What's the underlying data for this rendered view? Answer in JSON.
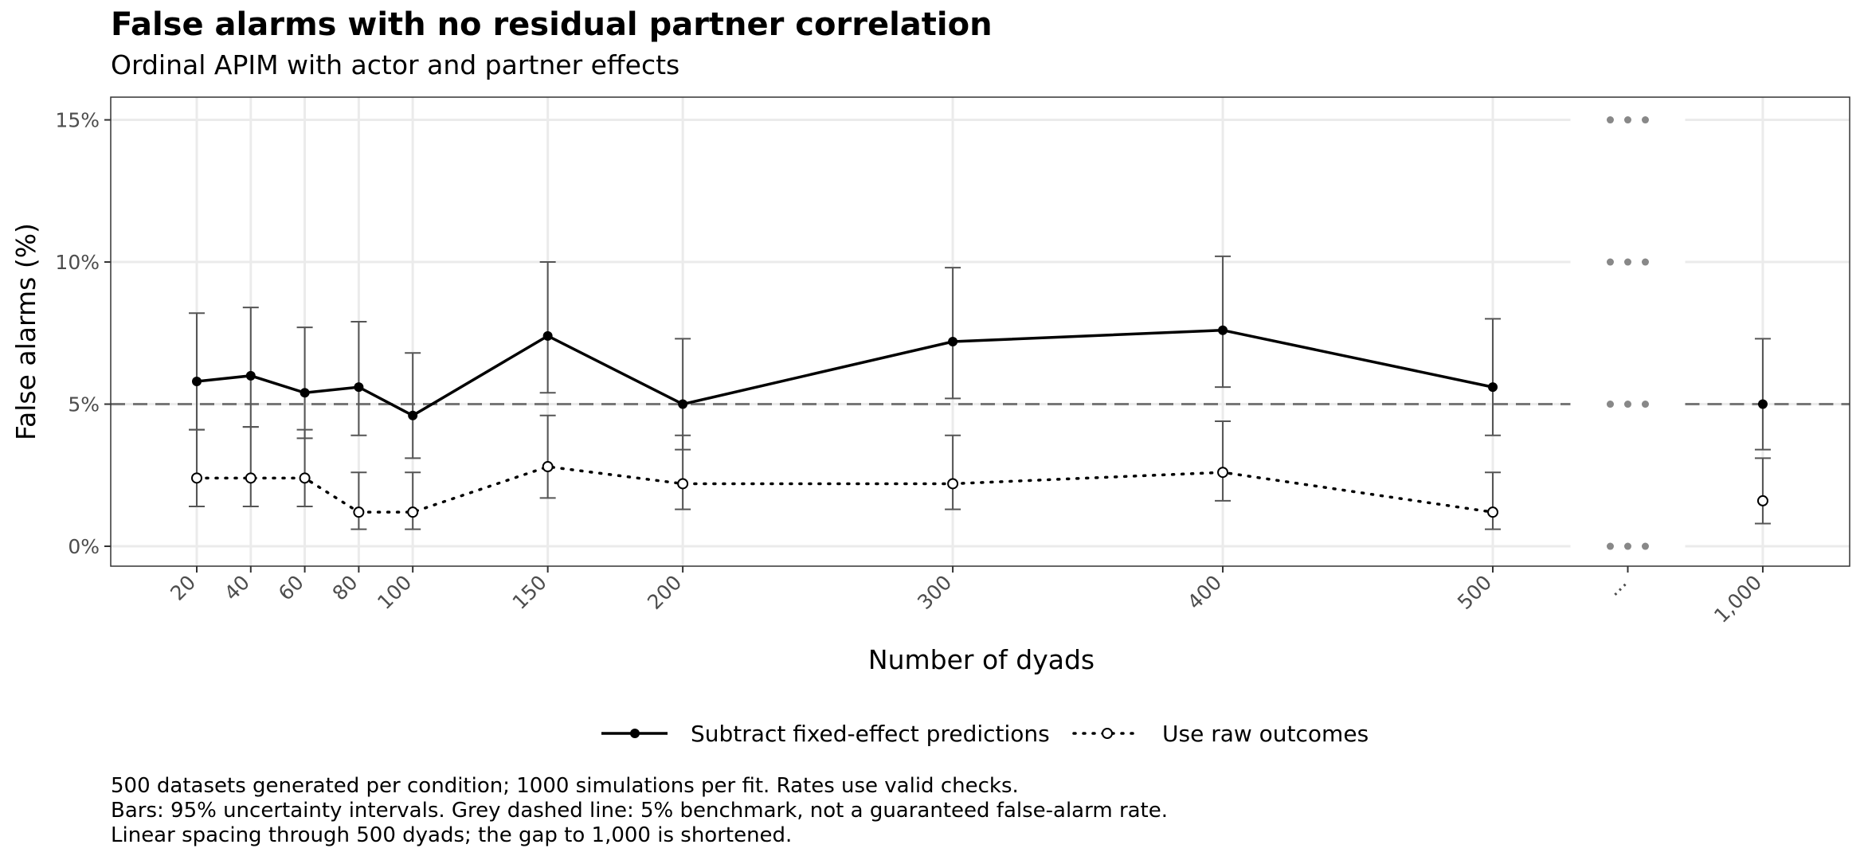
{
  "chart_data": {
    "type": "line",
    "title": "False alarms with no residual partner correlation",
    "subtitle": "Ordinal APIM with actor and partner effects",
    "xlabel": "Number of dyads",
    "ylabel": "False alarms (%)",
    "x_tick_labels": [
      "20",
      "40",
      "60",
      "80",
      "100",
      "150",
      "200",
      "300",
      "400",
      "500",
      "...",
      "1,000"
    ],
    "y_tick_labels": [
      "0%",
      "5%",
      "10%",
      "15%"
    ],
    "y_ticks": [
      0,
      5,
      10,
      15
    ],
    "ylim": [
      -0.7,
      15.8
    ],
    "x_linear_range": [
      20,
      500
    ],
    "x_axis_break_label": "...",
    "benchmark": 5,
    "grid": true,
    "legend_position": "bottom",
    "x": [
      20,
      40,
      60,
      80,
      100,
      150,
      200,
      300,
      400,
      500,
      1000
    ],
    "series": [
      {
        "name": "Subtract fixed-effect predictions",
        "style": "solid",
        "marker": "filled-circle",
        "values": [
          5.8,
          6.0,
          5.4,
          5.6,
          4.6,
          7.4,
          5.0,
          7.2,
          7.6,
          5.6,
          5.0
        ],
        "lower": [
          4.1,
          4.2,
          3.8,
          3.9,
          3.1,
          5.4,
          3.4,
          5.2,
          5.6,
          3.9,
          3.4
        ],
        "upper": [
          8.2,
          8.4,
          7.7,
          7.9,
          6.8,
          10.0,
          7.3,
          9.8,
          10.2,
          8.0,
          7.3
        ]
      },
      {
        "name": "Use raw outcomes",
        "style": "dotted",
        "marker": "open-circle",
        "values": [
          2.4,
          2.4,
          2.4,
          1.2,
          1.2,
          2.8,
          2.2,
          2.2,
          2.6,
          1.2,
          1.6
        ],
        "lower": [
          1.4,
          1.4,
          1.4,
          0.6,
          0.6,
          1.7,
          1.3,
          1.3,
          1.6,
          0.6,
          0.8
        ],
        "upper": [
          4.1,
          4.2,
          4.1,
          2.6,
          2.6,
          4.6,
          3.9,
          3.9,
          4.4,
          2.6,
          3.1
        ]
      }
    ]
  },
  "caption": [
    "500 datasets generated per condition; 1000 simulations per fit. Rates use valid checks.",
    "Bars: 95% uncertainty intervals. Grey dashed line: 5% benchmark, not a guaranteed false-alarm rate.",
    "Linear spacing through 500 dyads; the gap to 1,000 is shortened."
  ],
  "colors": {
    "line": "#000000",
    "error_bar": "#555555",
    "benchmark": "#777777",
    "grid": "#ebebeb",
    "panel_border": "#333333",
    "break_dots": "#888888"
  }
}
